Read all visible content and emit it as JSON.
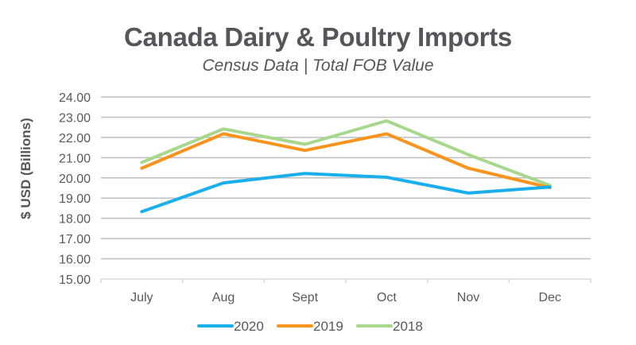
{
  "chart_data": {
    "type": "line",
    "title": "Canada Dairy & Poultry Imports",
    "subtitle": "Census Data | Total FOB Value",
    "xlabel": "",
    "ylabel": "$ USD (Billions)",
    "categories": [
      "July",
      "Aug",
      "Sept",
      "Oct",
      "Nov",
      "Dec"
    ],
    "ylim": [
      15,
      24
    ],
    "yticks": [
      "15.00",
      "16.00",
      "17.00",
      "18.00",
      "19.00",
      "20.00",
      "21.00",
      "22.00",
      "23.00",
      "24.00"
    ],
    "grid": true,
    "legend_position": "bottom",
    "series": [
      {
        "name": "2020",
        "color": "#1aafec",
        "values": [
          18.33,
          19.75,
          20.22,
          20.03,
          19.25,
          19.55
        ]
      },
      {
        "name": "2019",
        "color": "#f7941d",
        "values": [
          20.48,
          22.18,
          21.36,
          22.18,
          20.48,
          19.52
        ]
      },
      {
        "name": "2018",
        "color": "#a8d88b",
        "values": [
          20.76,
          22.42,
          21.66,
          22.82,
          21.15,
          19.63
        ]
      }
    ]
  }
}
